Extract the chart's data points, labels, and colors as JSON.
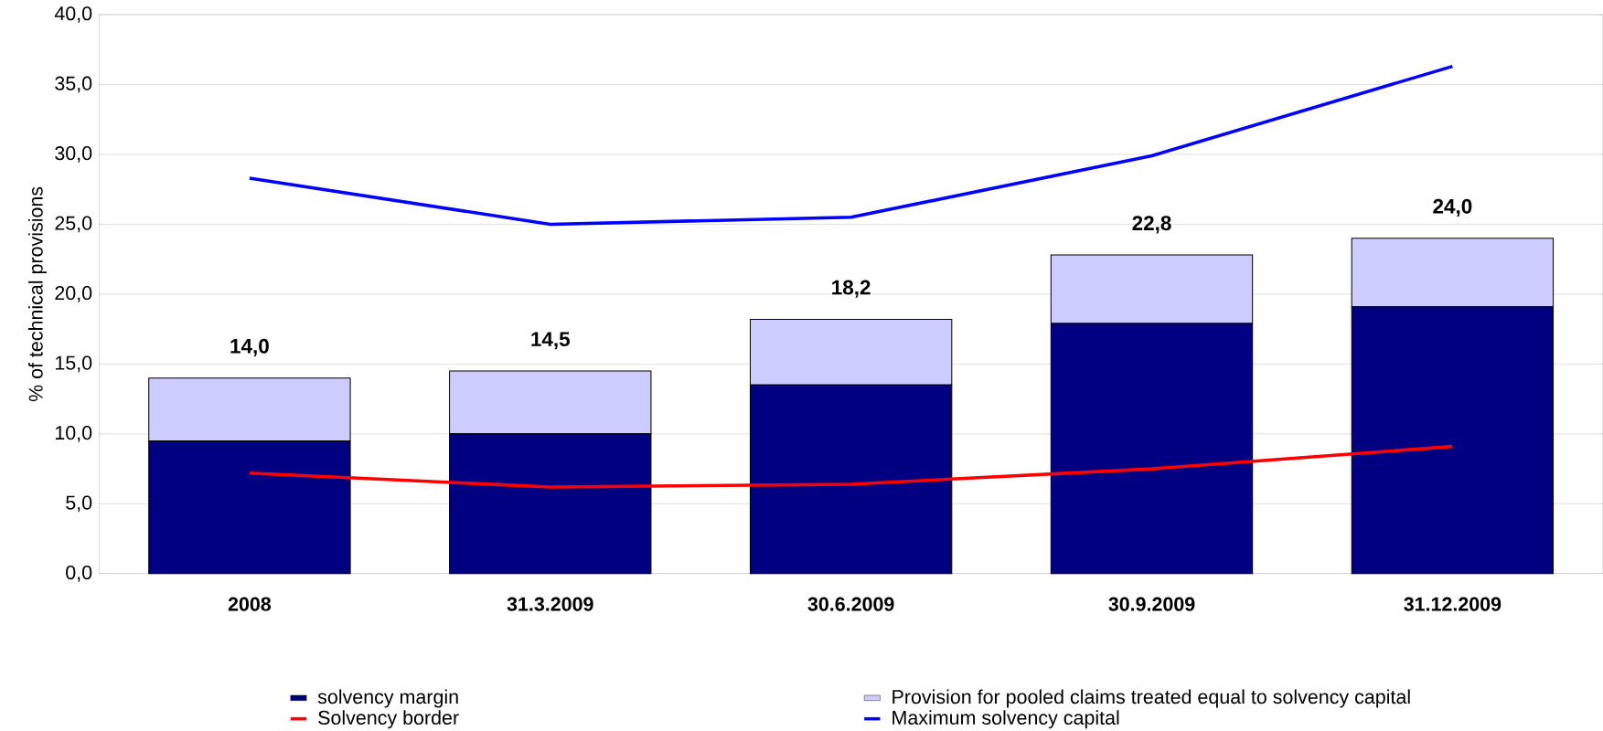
{
  "chart_data": {
    "type": "bar",
    "stacked": true,
    "ylabel": "% of technical provisions",
    "categories": [
      "2008",
      "31.3.2009",
      "30.6.2009",
      "30.9.2009",
      "31.12.2009"
    ],
    "series": [
      {
        "name": "solvency margin",
        "color": "#000080",
        "values": [
          9.5,
          10.0,
          13.5,
          17.9,
          19.1
        ]
      },
      {
        "name": "Provision for pooled claims treated equal to solvency capital",
        "color": "#ccccff",
        "values": [
          4.5,
          4.5,
          4.7,
          4.9,
          4.9
        ]
      },
      {
        "name": "Solvency border",
        "type": "line",
        "color": "#ff0000",
        "values": [
          7.2,
          6.2,
          6.4,
          7.5,
          9.1
        ]
      },
      {
        "name": "Maximum solvency capital",
        "type": "line",
        "color": "#0000ff",
        "values": [
          28.3,
          25.0,
          25.5,
          29.9,
          36.3
        ]
      }
    ],
    "totals": [
      "14,0",
      "14,5",
      "18,2",
      "22,8",
      "24,0"
    ],
    "ylim": [
      0,
      40
    ],
    "yticks": [
      {
        "value": 0,
        "label": "0,0"
      },
      {
        "value": 5,
        "label": "5,0"
      },
      {
        "value": 10,
        "label": "10,0"
      },
      {
        "value": 15,
        "label": "15,0"
      },
      {
        "value": 20,
        "label": "20,0"
      },
      {
        "value": 25,
        "label": "25,0"
      },
      {
        "value": 30,
        "label": "30,0"
      },
      {
        "value": 35,
        "label": "35,0"
      },
      {
        "value": 40,
        "label": "40,0"
      }
    ],
    "grid": "y",
    "legend": "bottom",
    "marker": "none",
    "line_style": "solid"
  }
}
